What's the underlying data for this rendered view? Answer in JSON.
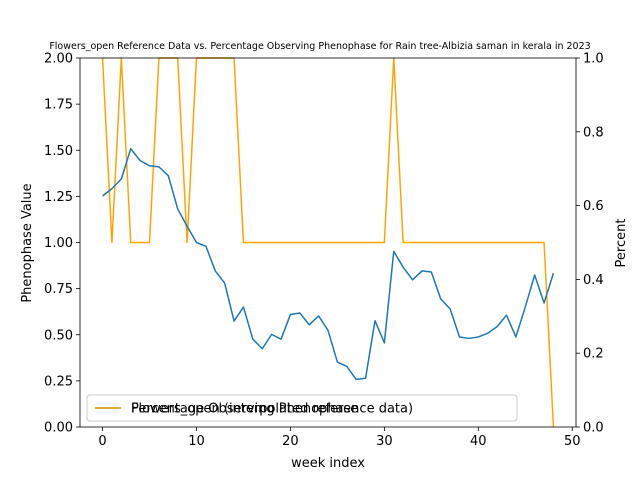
{
  "chart_data": {
    "type": "line",
    "title": "Flowers_open Reference Data vs. Percentage Observing Phenophase for Rain tree-Albizia saman in kerala in 2023",
    "xlabel": "week index",
    "ylabel_left": "Phenophase Value",
    "ylabel_right": "Percent",
    "xlim": [
      -2.4,
      50.4
    ],
    "ylim_left": [
      0,
      2.0
    ],
    "ylim_right": [
      0,
      1.0
    ],
    "x_ticks": [
      0,
      10,
      20,
      30,
      40,
      50
    ],
    "y_ticks_left": [
      "0.00",
      "0.25",
      "0.50",
      "0.75",
      "1.00",
      "1.25",
      "1.50",
      "1.75",
      "2.00"
    ],
    "y_ticks_right": [
      "0.0",
      "0.2",
      "0.4",
      "0.6",
      "0.8",
      "1.0"
    ],
    "legend": {
      "placement": "lower-left",
      "entries": [
        "Percentage Observing Phenophase",
        "Flowers_open (interpolated reference data)"
      ]
    },
    "series": [
      {
        "name": "Flowers_open (interpolated reference data)",
        "axis": "left",
        "color": "#ffa500",
        "x": [
          0,
          1,
          2,
          3,
          4,
          5,
          6,
          7,
          8,
          9,
          10,
          11,
          12,
          13,
          14,
          15,
          16,
          17,
          18,
          19,
          20,
          21,
          22,
          23,
          24,
          25,
          26,
          27,
          28,
          29,
          30,
          31,
          32,
          33,
          34,
          35,
          36,
          37,
          38,
          39,
          40,
          41,
          42,
          43,
          44,
          45,
          46,
          47,
          48
        ],
        "y": [
          2,
          1,
          2,
          1,
          1,
          1,
          2,
          2,
          2,
          1,
          2,
          2,
          2,
          2,
          2,
          1,
          1,
          1,
          1,
          1,
          1,
          1,
          1,
          1,
          1,
          1,
          1,
          1,
          1,
          1,
          1,
          2,
          1,
          1,
          1,
          1,
          1,
          1,
          1,
          1,
          1,
          1,
          1,
          1,
          1,
          1,
          1,
          1,
          0
        ]
      },
      {
        "name": "Percentage Observing Phenophase",
        "axis": "right",
        "color": "#1f77b4",
        "x": [
          0,
          1,
          2,
          3,
          4,
          5,
          6,
          7,
          8,
          9,
          10,
          11,
          12,
          13,
          14,
          15,
          16,
          17,
          18,
          19,
          20,
          21,
          22,
          23,
          24,
          25,
          26,
          27,
          28,
          29,
          30,
          31,
          32,
          33,
          34,
          35,
          36,
          37,
          38,
          39,
          40,
          41,
          42,
          43,
          44,
          45,
          46,
          47,
          48
        ],
        "y": [
          0.626,
          0.646,
          0.672,
          0.754,
          0.722,
          0.708,
          0.705,
          0.681,
          0.591,
          0.544,
          0.5,
          0.49,
          0.423,
          0.39,
          0.287,
          0.325,
          0.238,
          0.212,
          0.251,
          0.238,
          0.305,
          0.309,
          0.277,
          0.301,
          0.262,
          0.176,
          0.164,
          0.129,
          0.132,
          0.288,
          0.228,
          0.476,
          0.433,
          0.399,
          0.423,
          0.42,
          0.347,
          0.32,
          0.244,
          0.24,
          0.244,
          0.254,
          0.272,
          0.303,
          0.244,
          0.325,
          0.412,
          0.336,
          0.417
        ]
      }
    ]
  }
}
